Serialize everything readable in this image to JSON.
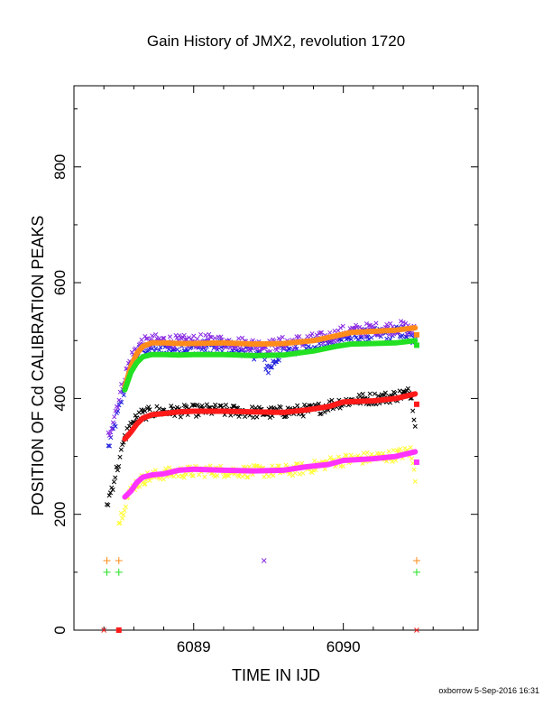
{
  "page": {
    "title": "Gain History of JMX2, revolution 1720",
    "footer": "oxborrow  5-Sep-2016 16:31"
  },
  "chart_data": {
    "type": "scatter",
    "title": "Gain History of JMX2, revolution 1720",
    "xlabel": "TIME IN IJD",
    "ylabel": "POSITION OF Cd CALIBRATION PEAKS",
    "xlim": [
      6088.2,
      6090.9
    ],
    "ylim": [
      0,
      940
    ],
    "xticks": [
      6089,
      6090
    ],
    "yticks": [
      0,
      200,
      400,
      600,
      800
    ],
    "grid": false,
    "colors": {
      "purple": "#8a2be2",
      "blue": "#1e1edc",
      "orange": "#ff8c1a",
      "green": "#22e022",
      "black": "#000000",
      "red": "#ff1a1a",
      "yellow": "#ffff33",
      "magenta": "#ff33ff"
    },
    "series": [
      {
        "color": "blue",
        "marker": "x",
        "scatter": 14,
        "points": [
          [
            6088.43,
            315
          ],
          [
            6088.5,
            380
          ],
          [
            6088.56,
            440
          ],
          [
            6088.6,
            465
          ],
          [
            6088.65,
            485
          ],
          [
            6088.75,
            488
          ],
          [
            6088.9,
            486
          ],
          [
            6089.1,
            490
          ],
          [
            6089.3,
            487
          ],
          [
            6089.45,
            475
          ],
          [
            6089.5,
            450
          ],
          [
            6089.6,
            485
          ],
          [
            6089.75,
            490
          ],
          [
            6089.9,
            495
          ],
          [
            6090.0,
            505
          ],
          [
            6090.2,
            510
          ],
          [
            6090.4,
            515
          ],
          [
            6090.48,
            500
          ]
        ]
      },
      {
        "color": "purple",
        "marker": "x",
        "scatter": 14,
        "points": [
          [
            6088.43,
            335
          ],
          [
            6088.5,
            400
          ],
          [
            6088.56,
            455
          ],
          [
            6088.6,
            480
          ],
          [
            6088.65,
            495
          ],
          [
            6088.75,
            500
          ],
          [
            6088.9,
            498
          ],
          [
            6089.1,
            500
          ],
          [
            6089.3,
            496
          ],
          [
            6089.5,
            490
          ],
          [
            6089.6,
            496
          ],
          [
            6089.75,
            500
          ],
          [
            6089.9,
            505
          ],
          [
            6090.0,
            515
          ],
          [
            6090.2,
            520
          ],
          [
            6090.4,
            523
          ],
          [
            6090.48,
            515
          ]
        ]
      },
      {
        "color": "black",
        "marker": "x",
        "scatter": 13,
        "points": [
          [
            6088.42,
            215
          ],
          [
            6088.5,
            290
          ],
          [
            6088.55,
            340
          ],
          [
            6088.6,
            360
          ],
          [
            6088.65,
            372
          ],
          [
            6088.75,
            378
          ],
          [
            6088.9,
            378
          ],
          [
            6089.1,
            380
          ],
          [
            6089.3,
            378
          ],
          [
            6089.5,
            375
          ],
          [
            6089.65,
            378
          ],
          [
            6089.8,
            380
          ],
          [
            6089.95,
            392
          ],
          [
            6090.1,
            398
          ],
          [
            6090.3,
            402
          ],
          [
            6090.45,
            410
          ],
          [
            6090.48,
            360
          ]
        ]
      },
      {
        "color": "yellow",
        "marker": "x",
        "scatter": 13,
        "points": [
          [
            6088.5,
            185
          ],
          [
            6088.55,
            225
          ],
          [
            6088.6,
            250
          ],
          [
            6088.68,
            263
          ],
          [
            6088.8,
            270
          ],
          [
            6088.95,
            273
          ],
          [
            6089.1,
            275
          ],
          [
            6089.3,
            274
          ],
          [
            6089.5,
            274
          ],
          [
            6089.65,
            276
          ],
          [
            6089.8,
            282
          ],
          [
            6089.95,
            292
          ],
          [
            6090.1,
            296
          ],
          [
            6090.3,
            300
          ],
          [
            6090.45,
            308
          ],
          [
            6090.48,
            262
          ]
        ]
      },
      {
        "color": "orange",
        "marker": "line",
        "scatter": 0,
        "points": [
          [
            6088.54,
            420
          ],
          [
            6088.58,
            455
          ],
          [
            6088.62,
            478
          ],
          [
            6088.66,
            490
          ],
          [
            6088.72,
            496
          ],
          [
            6088.8,
            496
          ],
          [
            6088.9,
            495
          ],
          [
            6089.0,
            495
          ],
          [
            6089.2,
            496
          ],
          [
            6089.4,
            494
          ],
          [
            6089.6,
            495
          ],
          [
            6089.8,
            500
          ],
          [
            6089.95,
            508
          ],
          [
            6090.05,
            514
          ],
          [
            6090.2,
            516
          ],
          [
            6090.35,
            518
          ],
          [
            6090.48,
            522
          ]
        ]
      },
      {
        "color": "green",
        "marker": "line",
        "scatter": 0,
        "points": [
          [
            6088.54,
            415
          ],
          [
            6088.58,
            445
          ],
          [
            6088.62,
            462
          ],
          [
            6088.66,
            472
          ],
          [
            6088.72,
            476
          ],
          [
            6088.8,
            476
          ],
          [
            6088.9,
            475
          ],
          [
            6089.0,
            476
          ],
          [
            6089.2,
            476
          ],
          [
            6089.4,
            474
          ],
          [
            6089.6,
            475
          ],
          [
            6089.8,
            482
          ],
          [
            6089.95,
            490
          ],
          [
            6090.05,
            494
          ],
          [
            6090.2,
            495
          ],
          [
            6090.35,
            496
          ],
          [
            6090.48,
            500
          ]
        ]
      },
      {
        "color": "red",
        "marker": "line",
        "scatter": 0,
        "points": [
          [
            6088.54,
            330
          ],
          [
            6088.58,
            342
          ],
          [
            6088.62,
            356
          ],
          [
            6088.66,
            366
          ],
          [
            6088.72,
            372
          ],
          [
            6088.8,
            374
          ],
          [
            6088.9,
            377
          ],
          [
            6089.0,
            378
          ],
          [
            6089.2,
            378
          ],
          [
            6089.4,
            377
          ],
          [
            6089.6,
            376
          ],
          [
            6089.75,
            380
          ],
          [
            6089.9,
            386
          ],
          [
            6090.0,
            394
          ],
          [
            6090.2,
            396
          ],
          [
            6090.35,
            400
          ],
          [
            6090.48,
            408
          ]
        ]
      },
      {
        "color": "magenta",
        "marker": "line",
        "scatter": 0,
        "points": [
          [
            6088.54,
            230
          ],
          [
            6088.58,
            240
          ],
          [
            6088.62,
            255
          ],
          [
            6088.66,
            264
          ],
          [
            6088.72,
            268
          ],
          [
            6088.8,
            270
          ],
          [
            6088.9,
            276
          ],
          [
            6089.0,
            278
          ],
          [
            6089.2,
            276
          ],
          [
            6089.4,
            275
          ],
          [
            6089.6,
            276
          ],
          [
            6089.75,
            282
          ],
          [
            6089.9,
            286
          ],
          [
            6090.0,
            293
          ],
          [
            6090.2,
            296
          ],
          [
            6090.35,
            300
          ],
          [
            6090.48,
            308
          ]
        ]
      }
    ],
    "markers": [
      {
        "color": "orange",
        "symbol": "+",
        "x": 6088.42,
        "y": 120
      },
      {
        "color": "orange",
        "symbol": "+",
        "x": 6088.5,
        "y": 120
      },
      {
        "color": "orange",
        "symbol": "+",
        "x": 6090.49,
        "y": 120
      },
      {
        "color": "green",
        "symbol": "+",
        "x": 6088.42,
        "y": 100
      },
      {
        "color": "green",
        "symbol": "+",
        "x": 6088.5,
        "y": 100
      },
      {
        "color": "green",
        "symbol": "+",
        "x": 6090.49,
        "y": 100
      },
      {
        "color": "purple",
        "symbol": "x",
        "x": 6089.47,
        "y": 120
      },
      {
        "color": "green",
        "symbol": "square",
        "x": 6090.49,
        "y": 492
      },
      {
        "color": "orange",
        "symbol": "square",
        "x": 6090.49,
        "y": 510
      },
      {
        "color": "red",
        "symbol": "square",
        "x": 6090.49,
        "y": 390
      },
      {
        "color": "magenta",
        "symbol": "square",
        "x": 6090.49,
        "y": 290
      },
      {
        "color": "red",
        "symbol": "square",
        "x": 6088.5,
        "y": 0
      },
      {
        "color": "red",
        "symbol": "x",
        "x": 6088.4,
        "y": 0
      },
      {
        "color": "red",
        "symbol": "x",
        "x": 6090.49,
        "y": 0
      }
    ]
  }
}
